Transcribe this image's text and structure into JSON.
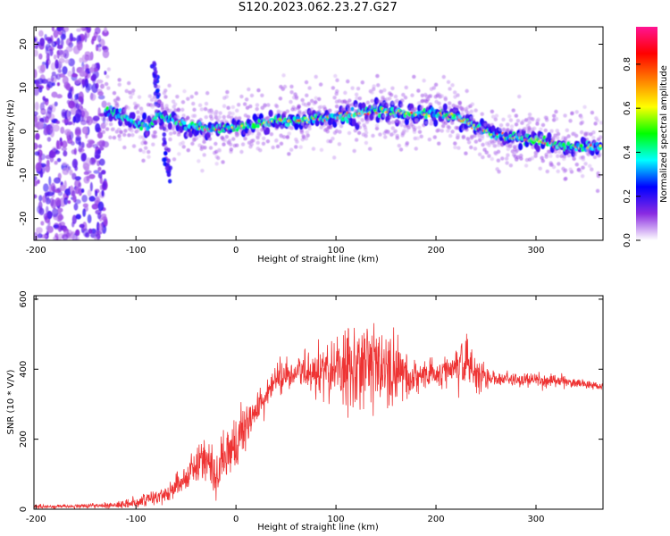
{
  "title": "S120.2023.062.23.27.G27",
  "chart_data": [
    {
      "type": "heatmap",
      "xlabel": "Height of straight line (km)",
      "ylabel": "Frequency (Hz)",
      "xlim": [
        -202,
        367
      ],
      "ylim": [
        -25,
        24
      ],
      "x_ticks": [
        -200,
        -100,
        0,
        100,
        200,
        300
      ],
      "y_ticks": [
        20,
        10,
        0,
        -10,
        -20
      ],
      "grid": false,
      "colorbar": {
        "label": "Normalized spectral amplitude",
        "range": [
          0,
          0.97
        ],
        "ticks": [
          0.0,
          0.2,
          0.4,
          0.6,
          0.8
        ],
        "tick_labels": [
          "0.0",
          "0.2",
          "0.4",
          "0.6",
          "0.8"
        ],
        "colors": [
          "#ffffff",
          "#8a2be2",
          "#0000ff",
          "#00ffff",
          "#00ff00",
          "#ffff00",
          "#ff8000",
          "#ff0000",
          "#ff1493"
        ]
      },
      "ridge_frequency": {
        "x": [
          -130,
          -110,
          -90,
          -75,
          -60,
          -40,
          -20,
          0,
          20,
          40,
          60,
          80,
          100,
          120,
          140,
          160,
          180,
          200,
          220,
          240,
          260,
          280,
          300,
          320,
          340,
          365
        ],
        "y": [
          5,
          3,
          1,
          4,
          2,
          1,
          0.5,
          1,
          1.5,
          2.5,
          2.5,
          3,
          3.5,
          4,
          4.8,
          4.3,
          3.8,
          4,
          3.5,
          1,
          -1,
          -1.5,
          -2,
          -3,
          -3.5,
          -3.5
        ]
      },
      "noise_region": {
        "x_range": [
          -202,
          -130
        ],
        "y_range": [
          -25,
          24
        ]
      },
      "spur": {
        "x": [
          -82,
          -80,
          -76,
          -72,
          -68,
          -66
        ],
        "y": [
          15,
          12,
          6,
          -2,
          -8,
          -11
        ]
      }
    },
    {
      "type": "line",
      "xlabel": "Height of straight line (km)",
      "ylabel": "SNR (10 * V/V)",
      "xlim": [
        -202,
        367
      ],
      "ylim": [
        0,
        610
      ],
      "x_ticks": [
        -200,
        -100,
        0,
        100,
        200,
        300
      ],
      "y_ticks": [
        0,
        200,
        400,
        600
      ],
      "color": "#ee3333",
      "grid": false,
      "envelope": {
        "x": [
          -202,
          -160,
          -130,
          -110,
          -90,
          -70,
          -50,
          -40,
          -30,
          -20,
          -10,
          0,
          10,
          20,
          30,
          40,
          60,
          80,
          100,
          120,
          140,
          160,
          180,
          200,
          220,
          230,
          240,
          250,
          260,
          280,
          300,
          330,
          367
        ],
        "mean": [
          8,
          8,
          10,
          15,
          25,
          45,
          90,
          130,
          150,
          90,
          150,
          190,
          240,
          280,
          320,
          370,
          390,
          390,
          400,
          410,
          410,
          390,
          380,
          385,
          410,
          420,
          400,
          370,
          375,
          370,
          370,
          365,
          350
        ],
        "spread": [
          6,
          6,
          8,
          12,
          18,
          25,
          40,
          50,
          60,
          70,
          80,
          70,
          60,
          55,
          50,
          40,
          50,
          60,
          110,
          130,
          120,
          100,
          50,
          40,
          60,
          90,
          70,
          30,
          25,
          20,
          20,
          15,
          10
        ]
      }
    }
  ]
}
